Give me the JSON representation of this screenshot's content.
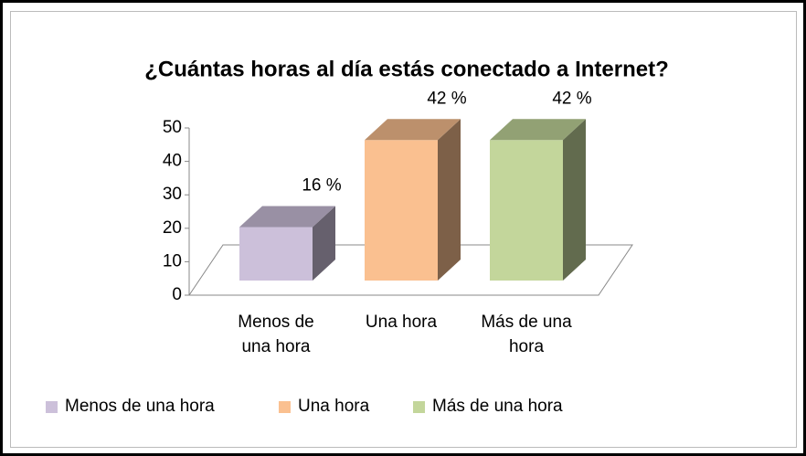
{
  "chart_data": {
    "type": "bar3d",
    "title": "¿Cuántas horas al día estás conectado a Internet?",
    "categories": [
      "Menos de una hora",
      "Una hora",
      "Más de una hora"
    ],
    "values": [
      16,
      42,
      42
    ],
    "value_labels": [
      "16 %",
      "42 %",
      "42 %"
    ],
    "colors": [
      "#ccc0da",
      "#fac090",
      "#c3d69b"
    ],
    "ylim": [
      0,
      50
    ],
    "yticks": [
      0,
      10,
      20,
      30,
      40,
      50
    ],
    "legend": "bottom"
  }
}
